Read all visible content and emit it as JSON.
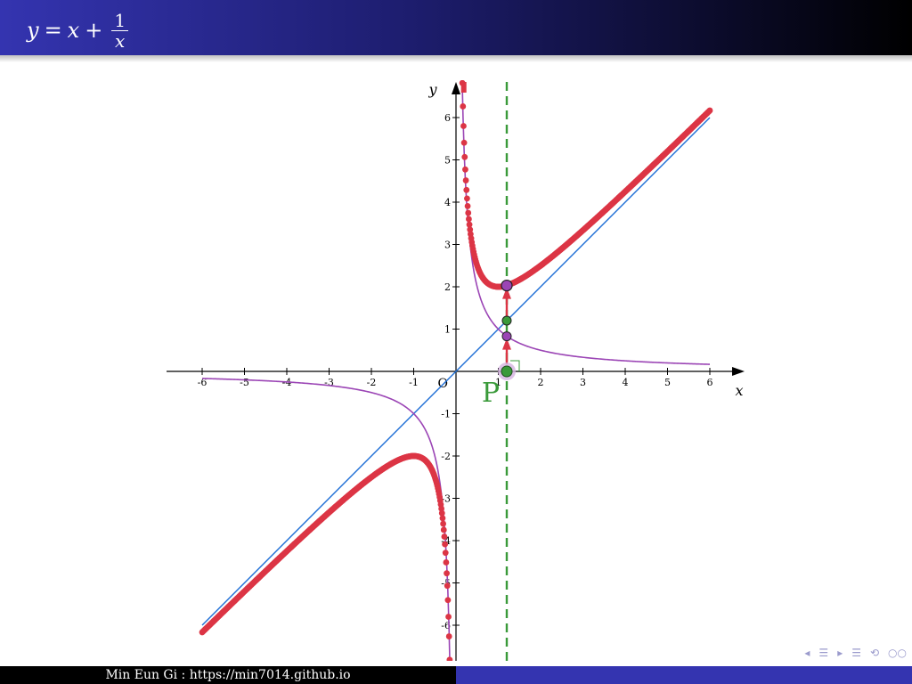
{
  "slide": {
    "title_lhs": "y",
    "title_eq": "=",
    "title_x": "x",
    "title_plus": "+",
    "title_num": "1",
    "title_den": "x"
  },
  "footer": {
    "author": "Min Eun Gi : https://min7014.github.io"
  },
  "nav": {
    "frame_prev": "◂",
    "frame_icon": "☰",
    "frame_next": "▸",
    "section_icon": "☰",
    "search_icon": "⟲",
    "zoom_icon": "○○"
  },
  "colors": {
    "title_bar_start": "#3434b0",
    "title_bar_end": "#000000",
    "footer_left": "#000000",
    "footer_right": "#3434b0",
    "sum_curve": "#dc3545",
    "reciprocal_curve": "#9b45b5",
    "identity_line": "#1f6fd6",
    "vertical_line": "#3a9a3a",
    "point_p": "#3a9a3a",
    "arrow": "#dc3545",
    "axis": "#000000"
  },
  "chart_data": {
    "type": "line",
    "xlabel": "x",
    "ylabel": "y",
    "origin_label": "O",
    "xlim": [
      -6.8,
      6.8
    ],
    "ylim": [
      -6.8,
      6.8
    ],
    "x_ticks": [
      "-6",
      "-5",
      "-4",
      "-3",
      "-2",
      "-1",
      "1",
      "2",
      "3",
      "4",
      "5",
      "6"
    ],
    "y_ticks": [
      "6",
      "5",
      "4",
      "3",
      "2",
      "1",
      "-1",
      "-2",
      "-3",
      "-4",
      "-5",
      "-6"
    ],
    "series": [
      {
        "type": "line",
        "formula": "y = x",
        "domain": [
          -6,
          6
        ]
      },
      {
        "type": "line",
        "formula": "y = 1/x",
        "domain": [
          -6,
          6
        ]
      },
      {
        "type": "scatter-curve",
        "formula": "y = x + 1/x",
        "domain": [
          -6,
          6
        ]
      }
    ],
    "vertical_line_x": 1.2,
    "point": {
      "label": "P",
      "x": 1.2,
      "y": 0,
      "markers": [
        {
          "name": "reciprocal-value",
          "y": 0.83
        },
        {
          "name": "identity-value",
          "y": 1.2
        },
        {
          "name": "sum-value",
          "y": 2.03
        }
      ]
    }
  }
}
